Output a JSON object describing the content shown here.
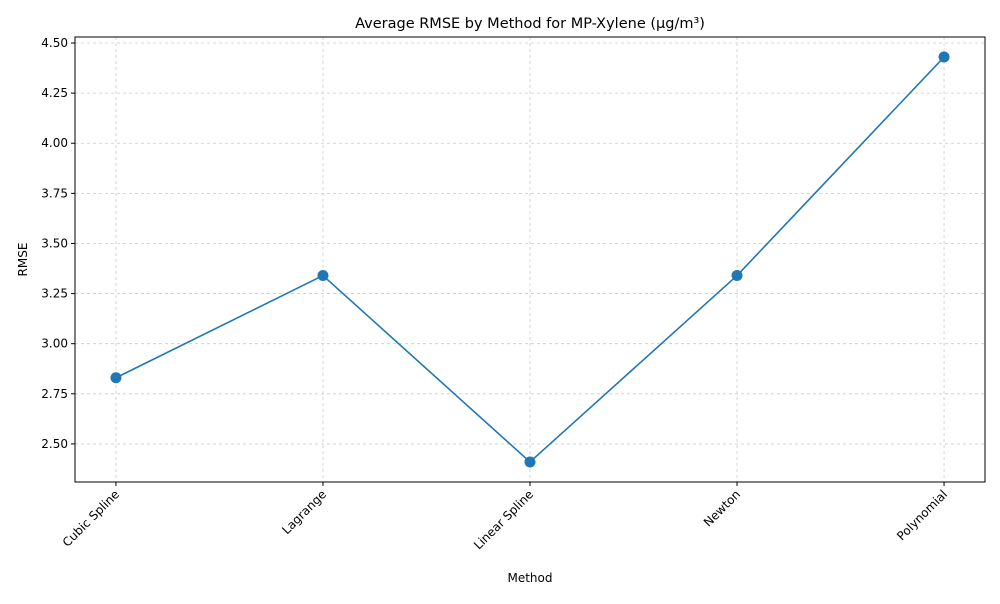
{
  "chart_data": {
    "type": "line",
    "title": "Average RMSE by Method for MP-Xylene (µg/m³)",
    "xlabel": "Method",
    "ylabel": "RMSE",
    "categories": [
      "Cubic Spline",
      "Lagrange",
      "Linear Spline",
      "Newton",
      "Polynomial"
    ],
    "series": [
      {
        "values": [
          2.83,
          3.34,
          2.41,
          3.34,
          4.43
        ],
        "color": "#1f77b4",
        "marker": "circle"
      }
    ],
    "ylim": [
      2.31,
      4.53
    ],
    "yticks": [
      "2.50",
      "2.75",
      "3.00",
      "3.25",
      "3.50",
      "3.75",
      "4.00",
      "4.25",
      "4.50"
    ],
    "xtick_rotation": 45,
    "grid": true,
    "grid_style": "dashed",
    "grid_color": "#cccccc"
  }
}
